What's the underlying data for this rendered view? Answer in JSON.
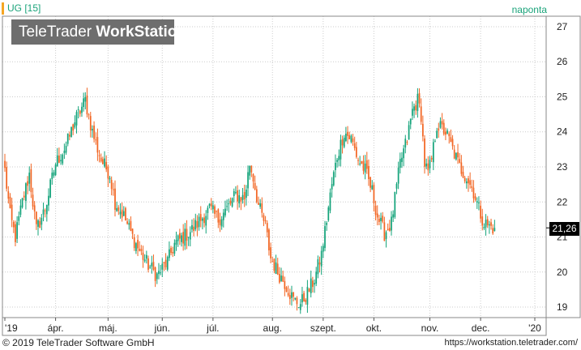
{
  "header": {
    "symbol": "UG [15]",
    "period": "naponta",
    "watermark_light": "TeleTrader",
    "watermark_bold": "WorkStation"
  },
  "last_price_label": "21,26",
  "footer": {
    "copyright": "© 2019 TeleTrader Software GmbH",
    "url": "https://workstation.teletrader.com/"
  },
  "colors": {
    "up": "#13a37a",
    "down": "#f26522",
    "grid": "#cccccc",
    "accent": "#f5a623"
  },
  "chart_data": {
    "type": "candlestick",
    "title": "",
    "xlabel": "",
    "ylabel": "",
    "ylim": [
      18.7,
      27.3
    ],
    "y_ticks": [
      19,
      20,
      21,
      22,
      23,
      24,
      25,
      26,
      27
    ],
    "y_tick_labels": [
      "19",
      "20",
      "21",
      "22",
      "23",
      "24",
      "25",
      "26",
      "27"
    ],
    "x_tick_labels": [
      "'19",
      "ápr.",
      "máj.",
      "jún.",
      "júl.",
      "aug.",
      "szept.",
      "okt.",
      "nov.",
      "dec.",
      "'20"
    ],
    "x_tick_slots": [
      0,
      29,
      59,
      90,
      119,
      153,
      182,
      211,
      243,
      272,
      303
    ],
    "grid": true,
    "last_value": 21.26,
    "anchors": [
      [
        0,
        22.9
      ],
      [
        3,
        21.6
      ],
      [
        6,
        21.0
      ],
      [
        10,
        22.0
      ],
      [
        14,
        22.8
      ],
      [
        18,
        21.2
      ],
      [
        23,
        21.8
      ],
      [
        29,
        23.1
      ],
      [
        35,
        23.6
      ],
      [
        40,
        24.3
      ],
      [
        46,
        24.9
      ],
      [
        50,
        24.0
      ],
      [
        55,
        23.2
      ],
      [
        60,
        22.8
      ],
      [
        63,
        22.0
      ],
      [
        68,
        21.6
      ],
      [
        73,
        21.0
      ],
      [
        77,
        20.6
      ],
      [
        82,
        20.2
      ],
      [
        87,
        19.9
      ],
      [
        93,
        20.3
      ],
      [
        97,
        20.8
      ],
      [
        102,
        21.0
      ],
      [
        107,
        21.2
      ],
      [
        112,
        21.5
      ],
      [
        117,
        21.8
      ],
      [
        122,
        21.5
      ],
      [
        127,
        21.8
      ],
      [
        132,
        22.2
      ],
      [
        137,
        22.1
      ],
      [
        140,
        23.1
      ],
      [
        142,
        22.7
      ],
      [
        145,
        21.9
      ],
      [
        149,
        21.3
      ],
      [
        152,
        20.4
      ],
      [
        156,
        20.0
      ],
      [
        160,
        19.7
      ],
      [
        165,
        19.2
      ],
      [
        169,
        19.1
      ],
      [
        173,
        19.4
      ],
      [
        177,
        19.8
      ],
      [
        181,
        20.5
      ],
      [
        184,
        21.5
      ],
      [
        187,
        22.5
      ],
      [
        190,
        23.3
      ],
      [
        194,
        24.0
      ],
      [
        198,
        23.8
      ],
      [
        202,
        23.2
      ],
      [
        206,
        22.9
      ],
      [
        210,
        22.3
      ],
      [
        213,
        21.6
      ],
      [
        217,
        21.1
      ],
      [
        221,
        21.4
      ],
      [
        226,
        23.1
      ],
      [
        230,
        23.8
      ],
      [
        233,
        24.6
      ],
      [
        236,
        24.9
      ],
      [
        238,
        24.5
      ],
      [
        240,
        23.1
      ],
      [
        242,
        22.8
      ],
      [
        244,
        23.2
      ],
      [
        247,
        24.2
      ],
      [
        252,
        24.0
      ],
      [
        256,
        23.5
      ],
      [
        260,
        23.0
      ],
      [
        264,
        22.7
      ],
      [
        268,
        22.3
      ],
      [
        271,
        21.8
      ],
      [
        274,
        21.4
      ],
      [
        277,
        21.3
      ],
      [
        280,
        21.26
      ]
    ]
  }
}
